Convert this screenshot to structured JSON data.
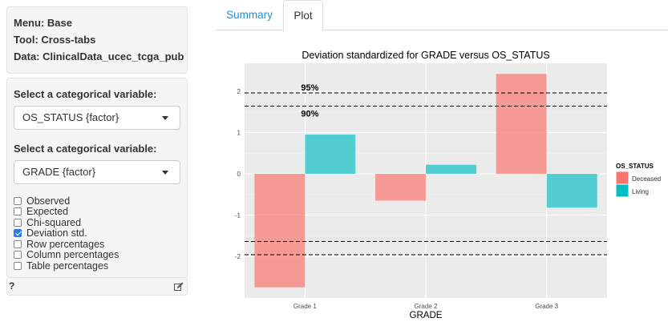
{
  "info": {
    "menu": "Menu: Base",
    "tool": "Tool: Cross-tabs",
    "data": "Data: ClinicalData_ucec_tcga_pub"
  },
  "controls": {
    "select1": {
      "label": "Select a categorical variable:",
      "value": "OS_STATUS {factor}"
    },
    "select2": {
      "label": "Select a categorical variable:",
      "value": "GRADE {factor}"
    },
    "checkboxes": [
      {
        "label": "Observed",
        "checked": false
      },
      {
        "label": "Expected",
        "checked": false
      },
      {
        "label": "Chi-squared",
        "checked": false
      },
      {
        "label": "Deviation std.",
        "checked": true
      },
      {
        "label": "Row percentages",
        "checked": false
      },
      {
        "label": "Column percentages",
        "checked": false
      },
      {
        "label": "Table percentages",
        "checked": false
      }
    ],
    "help": "?"
  },
  "tabs": [
    {
      "label": "Summary",
      "active": false
    },
    {
      "label": "Plot",
      "active": true
    }
  ],
  "colors": {
    "deceased": "#f8766d",
    "living": "#00bfc4",
    "tab_link": "#2a8ccd",
    "panel_bg": "#ebebeb"
  },
  "icons": {
    "edit": "edit-icon"
  },
  "chart_data": {
    "type": "bar",
    "title": "Deviation standardized for GRADE versus OS_STATUS",
    "xlabel": "GRADE",
    "ylabel": "",
    "categories": [
      "Grade 1",
      "Grade 2",
      "Grade 3"
    ],
    "series": [
      {
        "name": "Deceased",
        "values": [
          -2.75,
          -0.65,
          2.42
        ]
      },
      {
        "name": "Living",
        "values": [
          0.95,
          0.22,
          -0.82
        ]
      }
    ],
    "ylim": [
      -2.75,
      2.42
    ],
    "yticks": [
      -2,
      -1,
      0,
      1,
      2
    ],
    "reference_lines": [
      {
        "value": 1.96,
        "label": "95%"
      },
      {
        "value": 1.64,
        "label": "90%"
      },
      {
        "value": -1.64,
        "label": ""
      },
      {
        "value": -1.96,
        "label": ""
      }
    ],
    "legend": {
      "title": "OS_STATUS",
      "position": "right"
    },
    "grid": true
  }
}
